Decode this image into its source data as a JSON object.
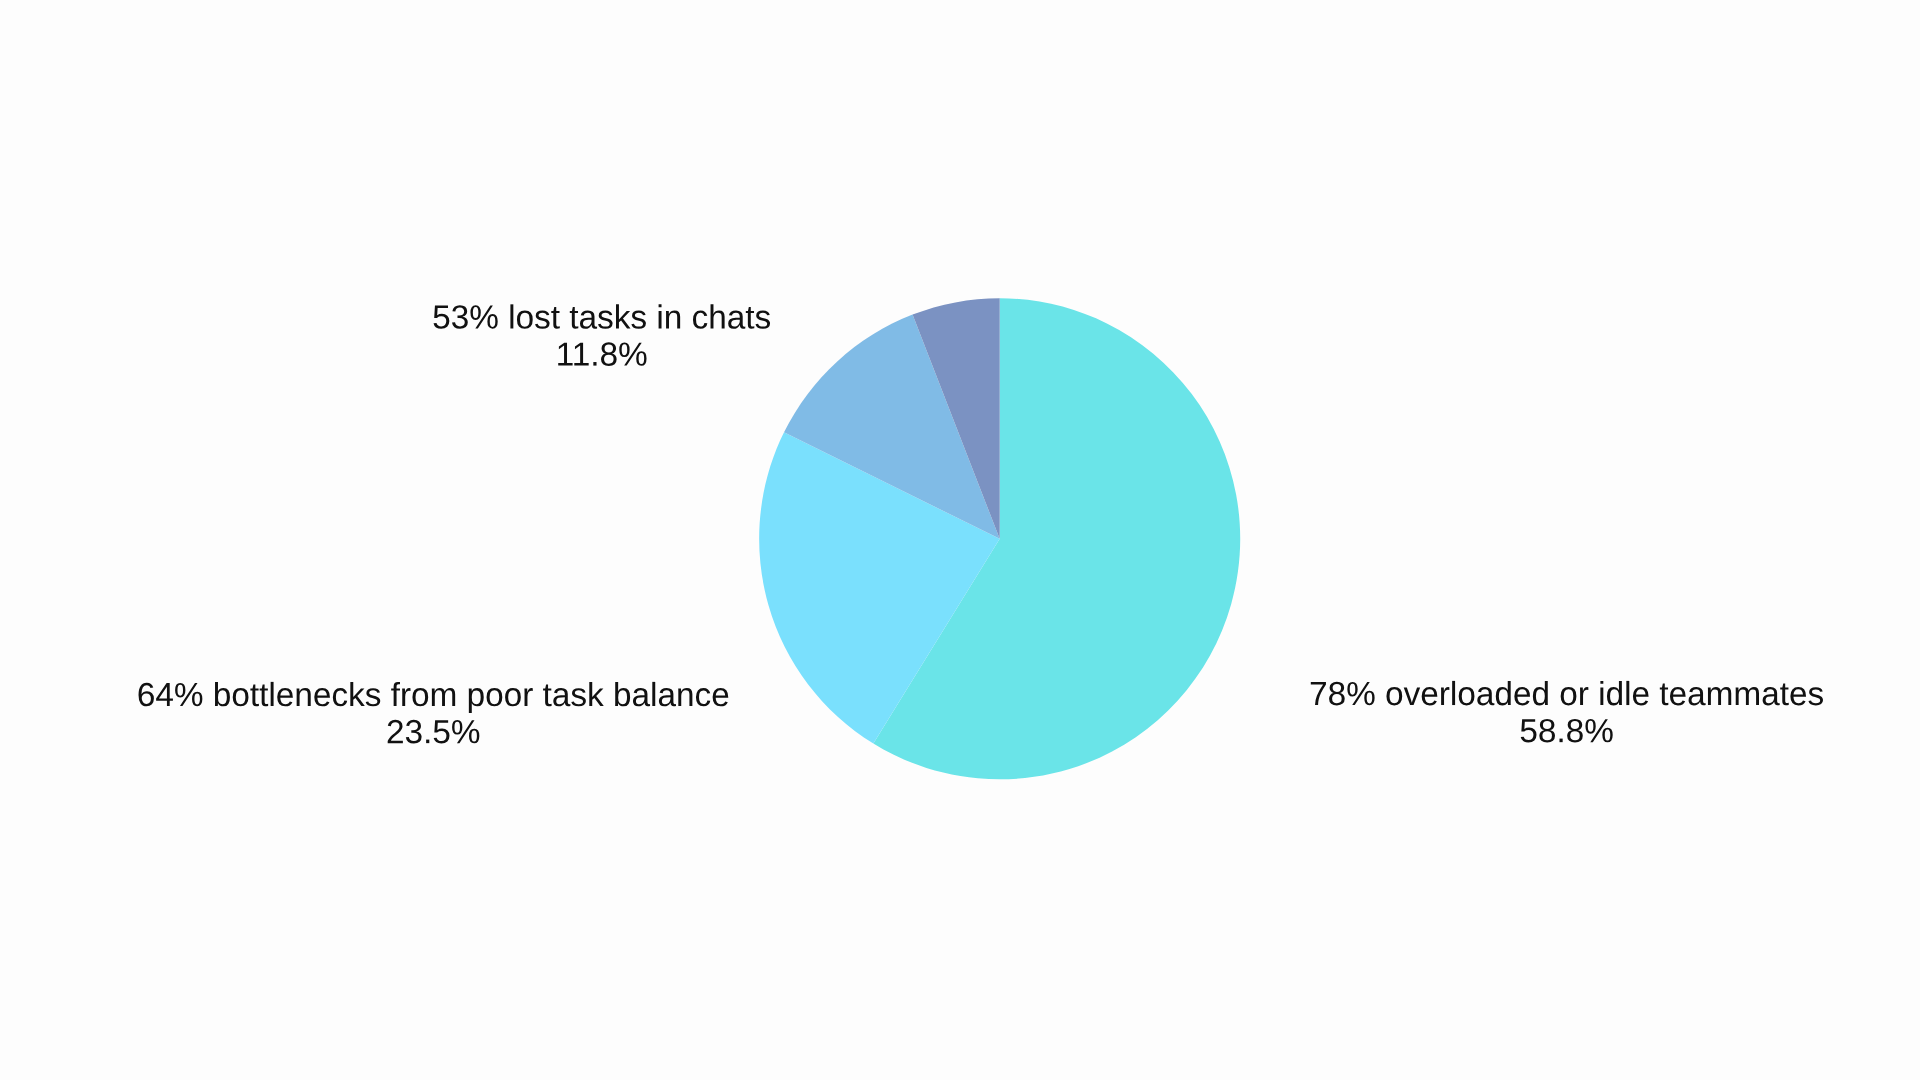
{
  "chart_data": {
    "type": "pie",
    "categories": [
      "78% overloaded or idle teammates",
      "64% bottlenecks from poor task balance",
      "53% lost tasks in chats",
      null
    ],
    "values": [
      58.8,
      23.5,
      11.8,
      5.9
    ],
    "value_labels": [
      "58.8%",
      "23.5%",
      "11.8%",
      null
    ],
    "colors": [
      "#6ae4e8",
      "#7ae0fd",
      "#80bbe6",
      "#7b92c2"
    ],
    "legend": false
  }
}
